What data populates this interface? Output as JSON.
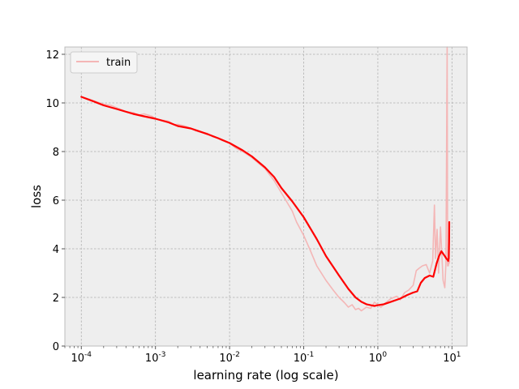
{
  "chart_data": {
    "type": "line",
    "title": "",
    "xlabel": "learning rate (log scale)",
    "ylabel": "loss",
    "xscale": "log",
    "xlim": [
      6e-05,
      16
    ],
    "ylim": [
      0,
      12.3
    ],
    "grid": true,
    "legend": {
      "placement": "top-left",
      "entries": [
        "train"
      ]
    },
    "colors": {
      "raw": "#f4b6b6",
      "smoothed": "#ff0000",
      "plot_background": "#eeeeee",
      "grid": "#b0b0b0",
      "spine": "#bcbcbc"
    },
    "xticks": [
      {
        "value": 0.0001,
        "base": "10",
        "exp": "-4"
      },
      {
        "value": 0.001,
        "base": "10",
        "exp": "-3"
      },
      {
        "value": 0.01,
        "base": "10",
        "exp": "-2"
      },
      {
        "value": 0.1,
        "base": "10",
        "exp": "-1"
      },
      {
        "value": 1,
        "base": "10",
        "exp": "0"
      },
      {
        "value": 10,
        "base": "10",
        "exp": "1"
      }
    ],
    "yticks": [
      {
        "value": 0,
        "label": "0"
      },
      {
        "value": 2,
        "label": "2"
      },
      {
        "value": 4,
        "label": "4"
      },
      {
        "value": 6,
        "label": "6"
      },
      {
        "value": 8,
        "label": "8"
      },
      {
        "value": 10,
        "label": "10"
      },
      {
        "value": 12,
        "label": "12"
      }
    ],
    "series": [
      {
        "name": "train",
        "style": "raw",
        "x": [
          0.0001,
          0.00013,
          0.00016,
          0.0002,
          0.00025,
          0.0003,
          0.00035,
          0.0004,
          0.0005,
          0.0006,
          0.0007,
          0.0008,
          0.0009,
          0.001,
          0.0012,
          0.0015,
          0.0018,
          0.002,
          0.0025,
          0.003,
          0.0035,
          0.004,
          0.005,
          0.006,
          0.007,
          0.008,
          0.01,
          0.012,
          0.015,
          0.02,
          0.025,
          0.03,
          0.04,
          0.05,
          0.06,
          0.07,
          0.08,
          0.1,
          0.12,
          0.15,
          0.2,
          0.25,
          0.3,
          0.35,
          0.4,
          0.45,
          0.5,
          0.55,
          0.6,
          0.7,
          0.8,
          0.9,
          1.0,
          1.1,
          1.3,
          1.5,
          1.8,
          2.0,
          2.3,
          2.6,
          3.0,
          3.3,
          3.6,
          4.0,
          4.5,
          5.0,
          5.5,
          5.8,
          6.0,
          6.3,
          6.6,
          7.0,
          7.3,
          7.6,
          8.0,
          8.3,
          8.6,
          8.75,
          8.85,
          8.95,
          9.05,
          9.15,
          9.3
        ],
        "y": [
          10.25,
          10.15,
          10.05,
          9.95,
          9.9,
          9.8,
          9.72,
          9.65,
          9.6,
          9.5,
          9.55,
          9.5,
          9.45,
          9.35,
          9.3,
          9.25,
          9.1,
          9.12,
          9.05,
          8.95,
          8.85,
          8.8,
          8.75,
          8.6,
          8.55,
          8.45,
          8.35,
          8.15,
          8.0,
          7.75,
          7.5,
          7.3,
          6.8,
          6.3,
          5.9,
          5.55,
          5.1,
          4.55,
          4.0,
          3.3,
          2.7,
          2.3,
          2.0,
          1.8,
          1.6,
          1.7,
          1.5,
          1.55,
          1.45,
          1.6,
          1.55,
          1.8,
          1.7,
          1.6,
          1.8,
          1.95,
          2.05,
          1.9,
          2.2,
          2.3,
          2.5,
          3.1,
          3.2,
          3.3,
          3.35,
          3.0,
          3.5,
          5.8,
          3.6,
          4.8,
          3.0,
          4.9,
          3.8,
          2.7,
          2.4,
          3.4,
          12.3,
          3.3,
          4.1,
          3.3,
          3.6,
          3.4,
          3.5
        ]
      },
      {
        "name": "",
        "style": "smoothed",
        "x": [
          0.0001,
          0.00015,
          0.0002,
          0.0003,
          0.0005,
          0.0007,
          0.001,
          0.0015,
          0.002,
          0.003,
          0.005,
          0.007,
          0.01,
          0.015,
          0.02,
          0.03,
          0.04,
          0.05,
          0.07,
          0.1,
          0.15,
          0.2,
          0.3,
          0.4,
          0.5,
          0.6,
          0.7,
          0.8,
          0.9,
          1.0,
          1.2,
          1.5,
          2.0,
          2.5,
          3.0,
          3.4,
          3.8,
          4.3,
          5.0,
          5.6,
          6.2,
          6.7,
          7.2,
          7.6,
          8.0,
          8.4,
          8.7,
          8.9,
          9.05,
          9.15,
          9.2
        ],
        "y": [
          10.25,
          10.05,
          9.9,
          9.75,
          9.55,
          9.45,
          9.35,
          9.2,
          9.05,
          8.95,
          8.72,
          8.55,
          8.35,
          8.05,
          7.8,
          7.35,
          6.95,
          6.5,
          5.95,
          5.3,
          4.4,
          3.7,
          2.9,
          2.35,
          2.0,
          1.82,
          1.72,
          1.68,
          1.65,
          1.68,
          1.72,
          1.82,
          1.95,
          2.1,
          2.2,
          2.25,
          2.6,
          2.8,
          2.9,
          2.85,
          3.4,
          3.7,
          3.9,
          3.8,
          3.7,
          3.6,
          3.55,
          3.5,
          3.6,
          4.3,
          5.1
        ]
      }
    ]
  }
}
